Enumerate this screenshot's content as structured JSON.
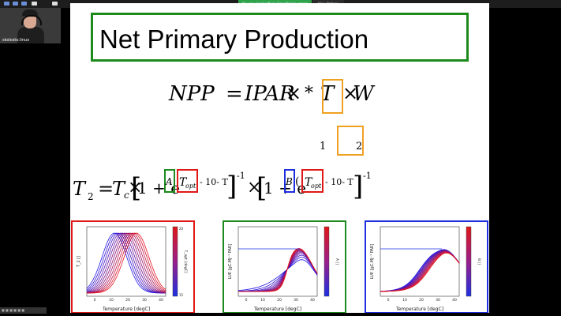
{
  "zoom": {
    "sharing_text": "You are viewing Nuno Carvalhais's screen",
    "view_options": "View Options",
    "participant_name": "skolosto.linux",
    "bottom_tag": "■ ■ ■ ■ ■ ■"
  },
  "slide": {
    "title": "Net Primary Production",
    "eq1": {
      "lhs": "NPP",
      "equals": "=",
      "ipar": "IPAR",
      "times1": "×",
      "star": "*",
      "t_var": "T",
      "x2": "×",
      "w": "W"
    },
    "subs": {
      "one": "1",
      "two": "2"
    },
    "eq2": {
      "t": "T",
      "sub2": "2",
      "equals": "=",
      "tc": "T",
      "tc_sub": "c",
      "times": "×",
      "one_plus_e1": "1 + e",
      "a": "A",
      "topt1": "T",
      "opt": "opt",
      "minus1": "- 10- T",
      "exp1": "-1",
      "one_plus_e2": "1 + e",
      "b": "B",
      "paren": "(",
      "topt2": "T",
      "minus2": "- 10- T",
      "exp2": "-1"
    },
    "plots": [
      {
        "frame_color": "#e01818",
        "xlabel": "Temperature [degC]",
        "ylabel": "T_2 []",
        "colorbar_label": "T_opt [degC]",
        "cbar_top": "20",
        "cbar_bottom": "15",
        "xticks": [
          "0",
          "10",
          "20",
          "30",
          "40"
        ]
      },
      {
        "frame_color": "#1d8a1d",
        "xlabel": "Temperature [degC]",
        "ylabel": "LUE [gC.MJ⁻¹ PAR]",
        "colorbar_label": "A []",
        "xticks": [
          "0",
          "10",
          "20",
          "30",
          "40"
        ]
      },
      {
        "frame_color": "#1e2fe0",
        "xlabel": "Temperature [degC]",
        "ylabel": "LUE [gC.MJ⁻¹ PAR]",
        "colorbar_label": "B []",
        "xticks": [
          "0",
          "10",
          "20",
          "30",
          "40"
        ]
      }
    ]
  }
}
